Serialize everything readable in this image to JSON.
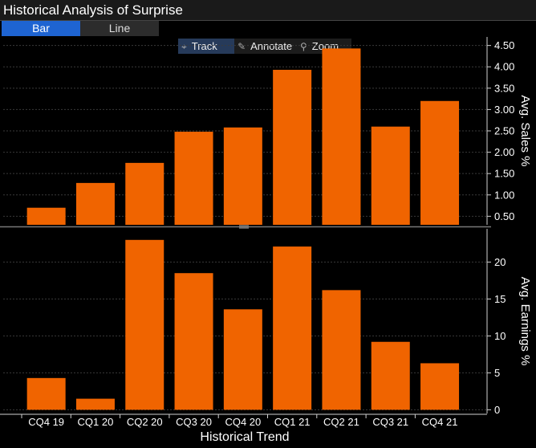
{
  "window": {
    "title": "Historical Analysis of Surprise"
  },
  "view_toggle": {
    "bar_label": "Bar",
    "line_label": "Line",
    "selected": "Bar"
  },
  "toolbar": {
    "track_label": "Track",
    "annotate_label": "Annotate",
    "zoom_label": "Zoom",
    "track_icon": "crosshair-icon",
    "annotate_icon": "pencil-icon",
    "zoom_icon": "magnifier-icon"
  },
  "colors": {
    "bar": "#F06400",
    "grid": "#3a3a3a",
    "axis": "#cfcfcf",
    "accent": "#1E64D2"
  },
  "chart_data": [
    {
      "type": "bar",
      "categories": [
        "CQ4 19",
        "CQ1 20",
        "CQ2 20",
        "CQ3 20",
        "CQ4 20",
        "CQ1 21",
        "CQ2 21",
        "CQ3 21",
        "CQ4 21"
      ],
      "values": [
        0.7,
        1.28,
        1.75,
        2.48,
        2.58,
        3.93,
        4.43,
        2.6,
        3.2
      ],
      "ylabel": "Avg. Sales %",
      "ylim": [
        0.3,
        4.7
      ],
      "yticks": [
        0.5,
        1.0,
        1.5,
        2.0,
        2.5,
        3.0,
        3.5,
        4.0,
        4.5
      ],
      "ytick_labels": [
        "0.50",
        "1.00",
        "1.50",
        "2.00",
        "2.50",
        "3.00",
        "3.50",
        "4.00",
        "4.50"
      ],
      "grid": true
    },
    {
      "type": "bar",
      "categories": [
        "CQ4 19",
        "CQ1 20",
        "CQ2 20",
        "CQ3 20",
        "CQ4 20",
        "CQ1 21",
        "CQ2 21",
        "CQ3 21",
        "CQ4 21"
      ],
      "values": [
        4.3,
        1.5,
        23.0,
        18.5,
        13.6,
        22.1,
        16.2,
        9.2,
        6.3
      ],
      "ylabel": "Avg. Earnings %",
      "xlabel": "Historical Trend",
      "ylim": [
        -0.5,
        24.5
      ],
      "yticks": [
        0,
        5,
        10,
        15,
        20
      ],
      "ytick_labels": [
        "0",
        "5",
        "10",
        "15",
        "20"
      ],
      "grid": true
    }
  ]
}
